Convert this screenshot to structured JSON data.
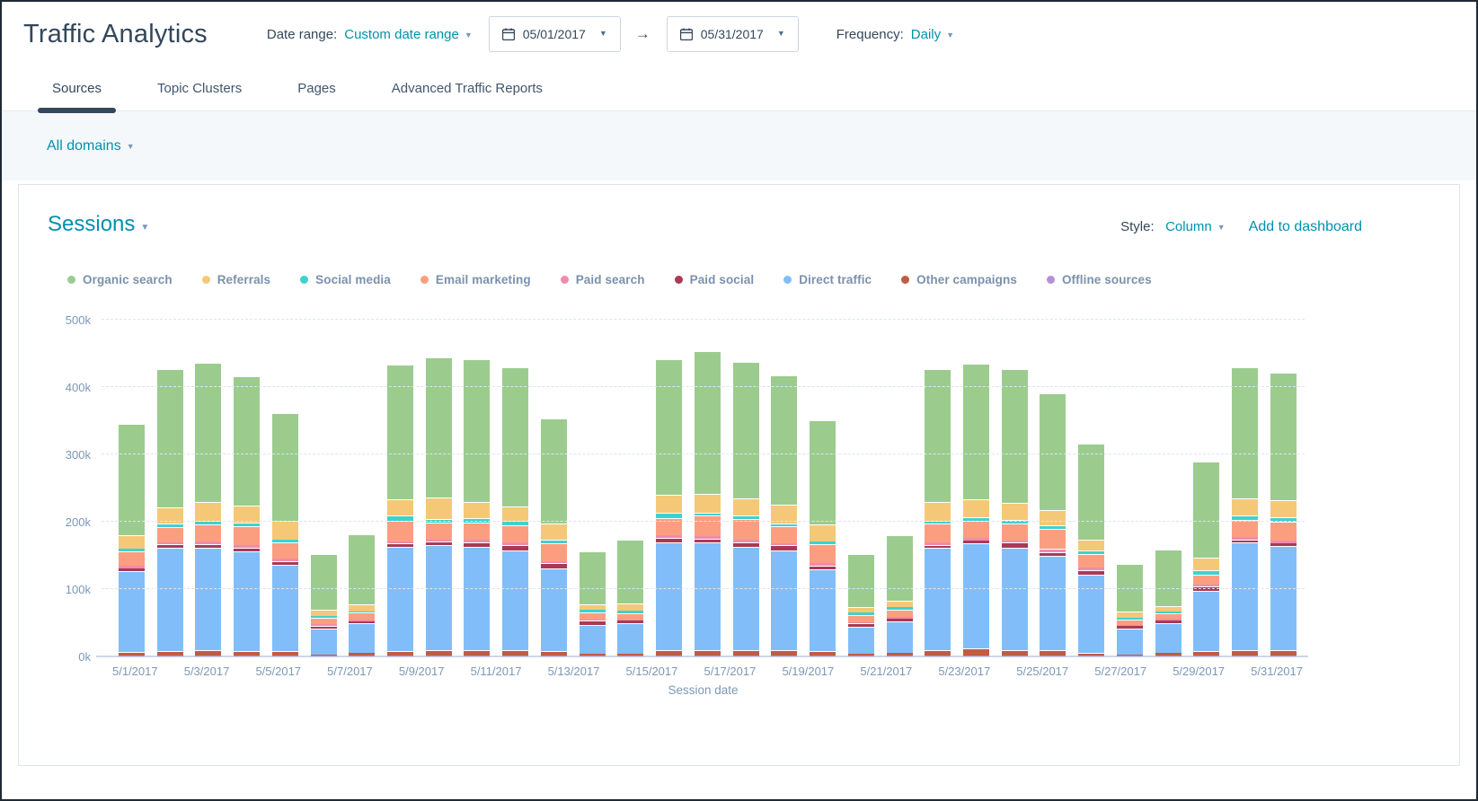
{
  "header": {
    "title": "Traffic Analytics",
    "date_range_label": "Date range:",
    "date_range_value": "Custom date range",
    "start_date": "05/01/2017",
    "end_date": "05/31/2017",
    "arrow": "→",
    "frequency_label": "Frequency:",
    "frequency_value": "Daily"
  },
  "tabs": [
    {
      "label": "Sources",
      "active": true
    },
    {
      "label": "Topic Clusters",
      "active": false
    },
    {
      "label": "Pages",
      "active": false
    },
    {
      "label": "Advanced Traffic Reports",
      "active": false
    }
  ],
  "domain_filter": {
    "value": "All domains"
  },
  "card": {
    "title": "Sessions",
    "style_label": "Style:",
    "style_value": "Column",
    "add_to_dashboard": "Add to dashboard"
  },
  "chart_data": {
    "type": "bar",
    "stacked": true,
    "title": "Sessions",
    "xlabel": "Session date",
    "ylabel": "",
    "unit": "thousands of sessions",
    "ylim_k": [
      0,
      500
    ],
    "y_ticks": [
      "0k",
      "100k",
      "200k",
      "300k",
      "400k",
      "500k"
    ],
    "grid": "dashed horizontal",
    "legend_position": "top",
    "x_tick_rule": "every other category labeled, starting 5/1/2017",
    "categories": [
      "5/1/2017",
      "5/2/2017",
      "5/3/2017",
      "5/4/2017",
      "5/5/2017",
      "5/6/2017",
      "5/7/2017",
      "5/8/2017",
      "5/9/2017",
      "5/10/2017",
      "5/11/2017",
      "5/12/2017",
      "5/13/2017",
      "5/14/2017",
      "5/15/2017",
      "5/16/2017",
      "5/17/2017",
      "5/18/2017",
      "5/19/2017",
      "5/20/2017",
      "5/21/2017",
      "5/22/2017",
      "5/23/2017",
      "5/24/2017",
      "5/25/2017",
      "5/26/2017",
      "5/27/2017",
      "5/28/2017",
      "5/29/2017",
      "5/30/2017",
      "5/31/2017"
    ],
    "series": [
      {
        "name": "Organic search",
        "color": "#9bcc8e",
        "values": [
          166,
          205,
          207,
          192,
          160,
          83,
          104,
          199,
          208,
          211,
          207,
          156,
          79,
          94,
          201,
          213,
          203,
          193,
          155,
          78,
          97,
          197,
          201,
          199,
          174,
          142,
          70,
          84,
          142,
          194,
          189
        ]
      },
      {
        "name": "Referrals",
        "color": "#f5c878",
        "values": [
          20,
          25,
          28,
          25,
          28,
          9,
          10,
          24,
          32,
          24,
          22,
          23,
          8,
          11,
          27,
          27,
          25,
          27,
          25,
          9,
          9,
          28,
          27,
          25,
          22,
          17,
          9,
          8,
          19,
          26,
          25
        ]
      },
      {
        "name": "Social media",
        "color": "#3fd1ce",
        "values": [
          4,
          5,
          5,
          6,
          4,
          3,
          2,
          8,
          5,
          7,
          6,
          6,
          4,
          4,
          8,
          5,
          6,
          5,
          4,
          4,
          4,
          5,
          6,
          5,
          6,
          5,
          3,
          3,
          6,
          6,
          7
        ]
      },
      {
        "name": "Email marketing",
        "color": "#fb9e80",
        "values": [
          21,
          22,
          25,
          27,
          24,
          9,
          10,
          31,
          25,
          26,
          26,
          26,
          10,
          9,
          25,
          30,
          30,
          25,
          28,
          10,
          11,
          27,
          25,
          26,
          29,
          20,
          8,
          8,
          15,
          26,
          28
        ]
      },
      {
        "name": "Paid search",
        "color": "#f08bab",
        "values": [
          4,
          3,
          4,
          4,
          4,
          2,
          3,
          3,
          3,
          3,
          3,
          3,
          2,
          2,
          4,
          4,
          4,
          3,
          4,
          2,
          3,
          4,
          4,
          3,
          5,
          4,
          2,
          2,
          3,
          3,
          4
        ]
      },
      {
        "name": "Paid social",
        "color": "#a83a55",
        "values": [
          4,
          6,
          6,
          6,
          6,
          5,
          2,
          5,
          6,
          7,
          9,
          8,
          6,
          3,
          6,
          6,
          7,
          8,
          6,
          5,
          4,
          5,
          4,
          7,
          5,
          6,
          4,
          4,
          6,
          5,
          4
        ]
      },
      {
        "name": "Direct traffic",
        "color": "#81bef9",
        "values": [
          120,
          153,
          152,
          148,
          128,
          38,
          45,
          155,
          156,
          154,
          148,
          123,
          43,
          46,
          161,
          160,
          154,
          148,
          121,
          40,
          47,
          151,
          156,
          152,
          140,
          116,
          38,
          45,
          90,
          159,
          154
        ]
      },
      {
        "name": "Other campaigns",
        "color": "#c05c44",
        "values": [
          6,
          7,
          8,
          7,
          7,
          2,
          4,
          7,
          8,
          8,
          8,
          7,
          3,
          3,
          8,
          8,
          8,
          8,
          7,
          3,
          4,
          9,
          11,
          9,
          9,
          5,
          2,
          4,
          7,
          9,
          9
        ]
      },
      {
        "name": "Offline sources",
        "color": "#b491d6",
        "values": [
          1,
          1,
          1,
          1,
          1,
          1,
          1,
          1,
          1,
          1,
          1,
          1,
          1,
          1,
          1,
          1,
          1,
          1,
          1,
          1,
          1,
          1,
          1,
          1,
          1,
          1,
          1,
          1,
          1,
          1,
          1
        ]
      }
    ]
  }
}
